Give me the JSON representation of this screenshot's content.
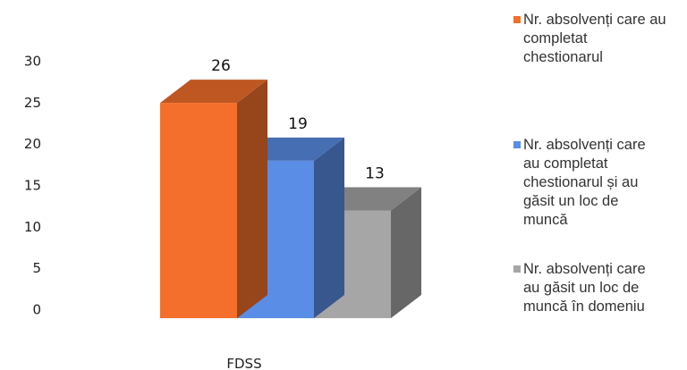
{
  "chart_data": {
    "type": "bar",
    "style": "3d",
    "categories": [
      "FDSS"
    ],
    "series": [
      {
        "name": "Nr. absolvenți care au completat chestionarul",
        "values": [
          26
        ],
        "color": "#f36f2b"
      },
      {
        "name": "Nr. absolvenți care au completat chestionarul și au găsit un loc de muncă",
        "values": [
          19
        ],
        "color": "#5a8de6"
      },
      {
        "name": "Nr. absolvenți care au găsit un loc de muncă în domeniu",
        "values": [
          13
        ],
        "color": "#a6a6a6"
      }
    ],
    "yticks": [
      "0",
      "5",
      "10",
      "15",
      "20",
      "25",
      "30"
    ],
    "ylim": [
      0,
      30
    ],
    "grid": false,
    "legend_position": "right",
    "title": "",
    "xlabel": "",
    "ylabel": ""
  },
  "legend": {
    "items": [
      {
        "lines": [
          "Nr. absolvenți care au",
          "completat",
          "chestionarul"
        ]
      },
      {
        "lines": [
          "Nr. absolvenți care",
          "au completat",
          "chestionarul și au",
          "găsit un loc de",
          "muncă"
        ]
      },
      {
        "lines": [
          "Nr. absolvenți care",
          "au găsit un loc de",
          "muncă în domeniu"
        ]
      }
    ]
  }
}
